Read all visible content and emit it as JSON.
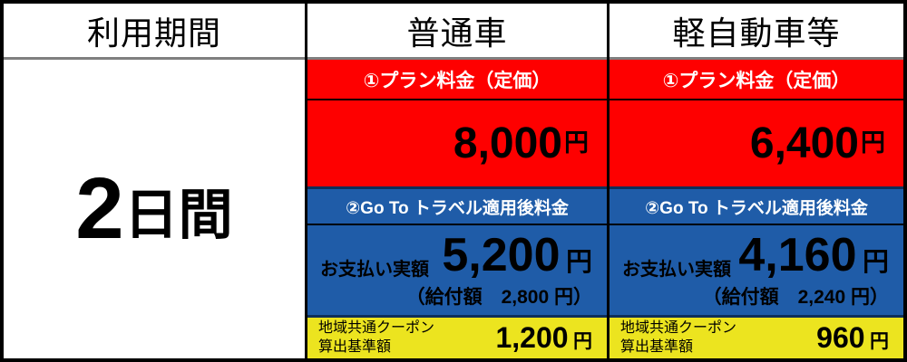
{
  "table": {
    "headers": {
      "period": "利用期間",
      "standard": "普通車",
      "light": "軽自動車等"
    },
    "period": {
      "number": "2",
      "unit": "日間"
    },
    "sections": {
      "plan_label": "①プラン料金（定価）",
      "goto_label": "②Go To トラベル適用後料金",
      "pay_label": "お支払い実額",
      "coupon_label_line1": "地域共通クーポン",
      "coupon_label_line2": "算出基準額"
    },
    "columns": [
      {
        "plan_amount": "8,000",
        "plan_unit": "円",
        "pay_amount": "5,200",
        "pay_unit": "円",
        "subsidy": "（給付額　2,800 円）",
        "coupon_amount": "1,200",
        "coupon_unit": "円"
      },
      {
        "plan_amount": "6,400",
        "plan_unit": "円",
        "pay_amount": "4,160",
        "pay_unit": "円",
        "subsidy": "（給付額　2,240 円）",
        "coupon_amount": "960",
        "coupon_unit": "円"
      }
    ],
    "colors": {
      "red": "#fe0000",
      "blue": "#1f5ca8",
      "yellow": "#ece41f",
      "separator_gray": "#7f7f7f",
      "separator_navy": "#0e2f5a",
      "border_black": "#000000"
    }
  }
}
